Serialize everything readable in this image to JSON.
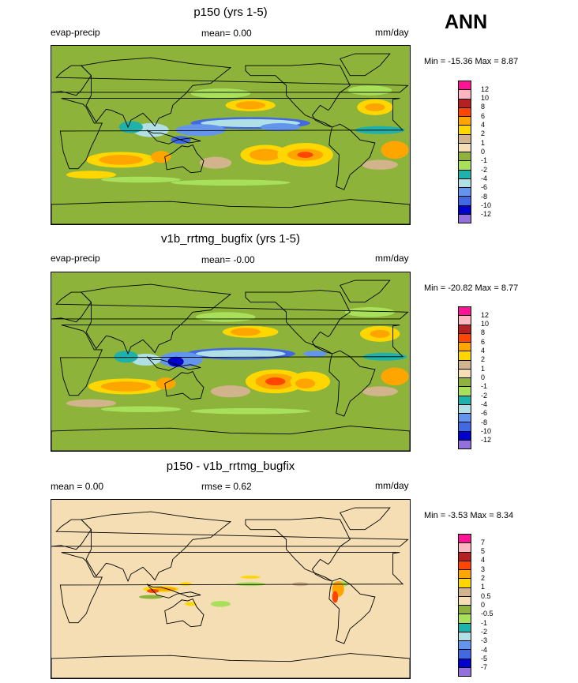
{
  "season_label": "ANN",
  "chart_data": [
    {
      "type": "heatmap",
      "title": "p150 (yrs 1-5)",
      "left_label": "evap-precip",
      "mean_text": "mean=   0.00",
      "units": "mm/day",
      "minmax_text": "Min = -15.36 Max =   8.87",
      "legend_levels": [
        "12",
        "10",
        "8",
        "6",
        "4",
        "2",
        "1",
        "0",
        "-1",
        "-2",
        "-4",
        "-6",
        "-8",
        "-10",
        "-12"
      ],
      "legend_colors": [
        "#ff1493",
        "#ffb6c1",
        "#b22222",
        "#ff4500",
        "#ffa500",
        "#ffd700",
        "#d2b48c",
        "#f5deb3",
        "#8db33a",
        "#a8e05b",
        "#20b2aa",
        "#b0e0e6",
        "#6495ed",
        "#4169e1",
        "#0000cd",
        "#9370db"
      ]
    },
    {
      "type": "heatmap",
      "title": "v1b_rrtmg_bugfix (yrs 1-5)",
      "left_label": "evap-precip",
      "mean_text": "mean=  -0.00",
      "units": "mm/day",
      "minmax_text": "Min = -20.82 Max =   8.77",
      "legend_levels": [
        "12",
        "10",
        "8",
        "6",
        "4",
        "2",
        "1",
        "0",
        "-1",
        "-2",
        "-4",
        "-6",
        "-8",
        "-10",
        "-12"
      ],
      "legend_colors": [
        "#ff1493",
        "#ffb6c1",
        "#b22222",
        "#ff4500",
        "#ffa500",
        "#ffd700",
        "#d2b48c",
        "#f5deb3",
        "#8db33a",
        "#a8e05b",
        "#20b2aa",
        "#b0e0e6",
        "#6495ed",
        "#4169e1",
        "#0000cd",
        "#9370db"
      ]
    },
    {
      "type": "heatmap",
      "title": "p150 - v1b_rrtmg_bugfix",
      "left_label": "mean =   0.00",
      "mean_text": "rmse =   0.62",
      "units": "mm/day",
      "minmax_text": "Min =  -3.53 Max =   8.34",
      "legend_levels": [
        "7",
        "5",
        "4",
        "3",
        "2",
        "1",
        "0.5",
        "0",
        "-0.5",
        "-1",
        "-2",
        "-3",
        "-4",
        "-5",
        "-7"
      ],
      "legend_colors": [
        "#ff1493",
        "#ffb6c1",
        "#b22222",
        "#ff4500",
        "#ffa500",
        "#ffd700",
        "#d2b48c",
        "#f5deb3",
        "#8db33a",
        "#a8e05b",
        "#20b2aa",
        "#b0e0e6",
        "#6495ed",
        "#4169e1",
        "#0000cd",
        "#9370db"
      ]
    }
  ]
}
